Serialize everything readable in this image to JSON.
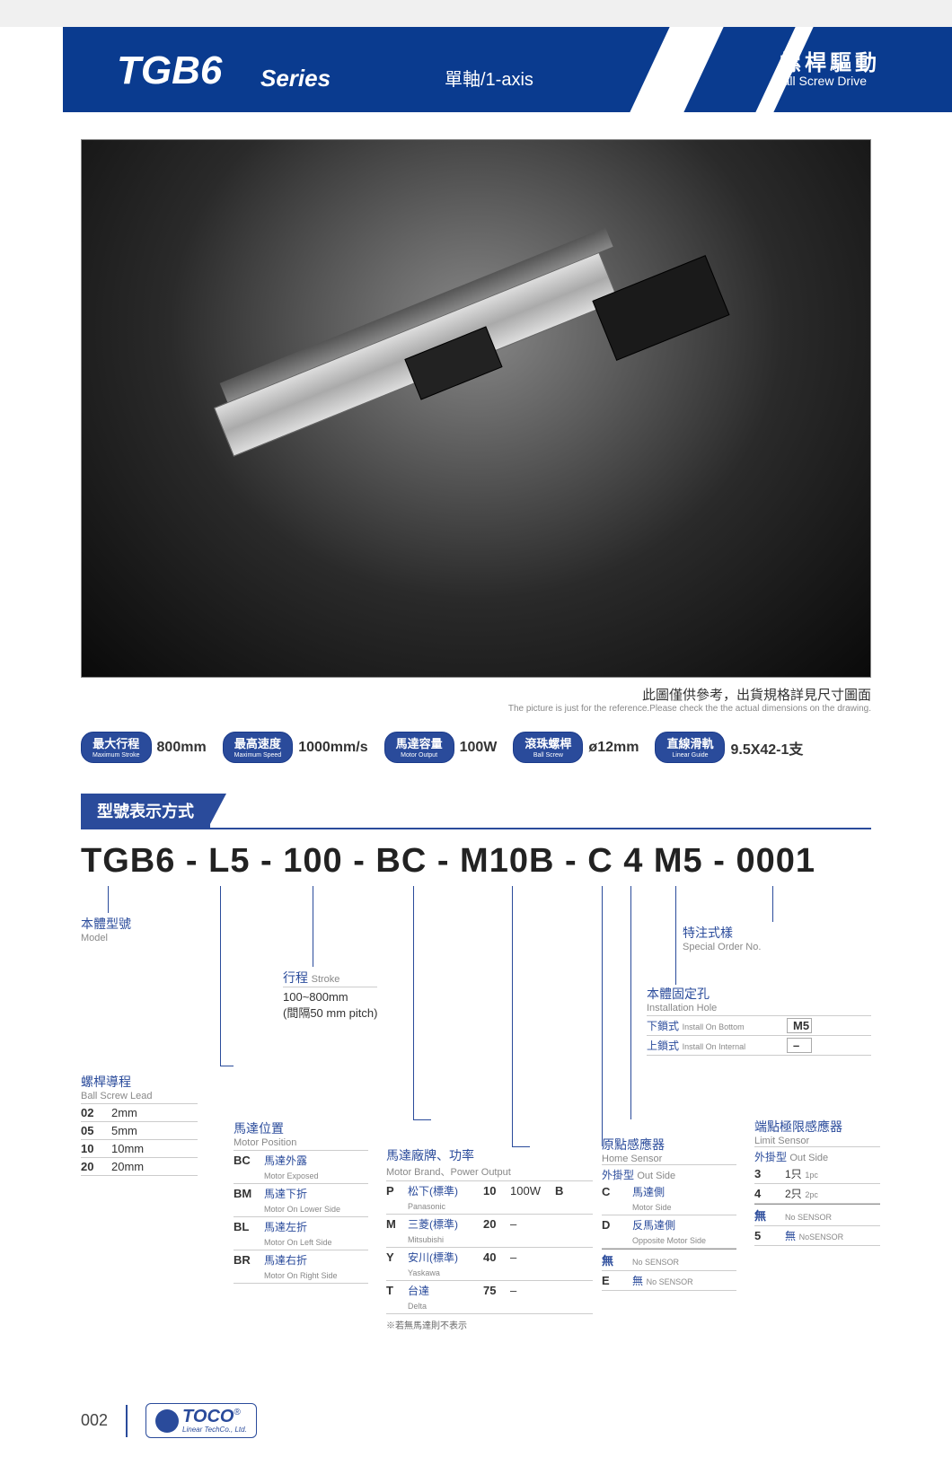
{
  "header": {
    "title_main": "TGB6",
    "title_series": "Series",
    "sub1": "單軸/1-axis",
    "sub2_cn": "螺桿驅動",
    "sub2_en": "Ball Screw Drive"
  },
  "image_caption": {
    "cn": "此圖僅供參考，出貨規格詳見尺寸圖面",
    "en": "The picture is just for the reference.Please check the the actual dimensions on the drawing."
  },
  "specs": [
    {
      "cn": "最大行程",
      "en": "Maximum Stroke",
      "value": "800mm"
    },
    {
      "cn": "最高速度",
      "en": "Maximum Speed",
      "value": "1000mm/s"
    },
    {
      "cn": "馬達容量",
      "en": "Motor Output",
      "value": "100W"
    },
    {
      "cn": "滾珠螺桿",
      "en": "Ball Screw",
      "value": "ø12mm"
    },
    {
      "cn": "直線滑軌",
      "en": "Linear Guide",
      "value": "9.5X42-1支"
    }
  ],
  "section_title": "型號表示方式",
  "model_line": "TGB6 - L5 - 100 - BC - M10B - C 4 M5 - 0001",
  "breakdown": {
    "model": {
      "cn": "本體型號",
      "en": "Model"
    },
    "lead": {
      "cn": "螺桿導程",
      "en": "Ball Screw Lead",
      "rows": [
        {
          "code": "02",
          "val": "2mm"
        },
        {
          "code": "05",
          "val": "5mm"
        },
        {
          "code": "10",
          "val": "10mm"
        },
        {
          "code": "20",
          "val": "20mm"
        }
      ]
    },
    "stroke": {
      "cn": "行程",
      "en": "Stroke",
      "line1": "100~800mm",
      "line2": "(間隔50 mm pitch)"
    },
    "motor_pos": {
      "cn": "馬達位置",
      "en": "Motor Position",
      "rows": [
        {
          "code": "BC",
          "cn": "馬達外露",
          "en": "Motor Exposed"
        },
        {
          "code": "BM",
          "cn": "馬達下折",
          "en": "Motor On Lower Side"
        },
        {
          "code": "BL",
          "cn": "馬達左折",
          "en": "Motor On Left Side"
        },
        {
          "code": "BR",
          "cn": "馬達右折",
          "en": "Motor On Right Side"
        }
      ]
    },
    "motor_brand": {
      "cn": "馬達廠牌、功率",
      "en": "Motor Brand、Power Output",
      "rows": [
        {
          "code": "P",
          "cn": "松下(標準)",
          "en": "Panasonic",
          "w": "10",
          "watt": "100W",
          "suffix": "B"
        },
        {
          "code": "M",
          "cn": "三菱(標準)",
          "en": "Mitsubishi",
          "w": "20",
          "watt": "–",
          "suffix": ""
        },
        {
          "code": "Y",
          "cn": "安川(標準)",
          "en": "Yaskawa",
          "w": "40",
          "watt": "–",
          "suffix": ""
        },
        {
          "code": "T",
          "cn": "台達",
          "en": "Delta",
          "w": "75",
          "watt": "–",
          "suffix": ""
        }
      ],
      "note": "※若無馬達則不表示"
    },
    "home_sensor": {
      "cn": "原點感應器",
      "en": "Home Sensor",
      "sub_cn": "外掛型",
      "sub_en": "Out Side",
      "rows": [
        {
          "code": "C",
          "cn": "馬達側",
          "en": "Motor Side"
        },
        {
          "code": "D",
          "cn": "反馬達側",
          "en": "Opposite Motor Side"
        }
      ],
      "none_cn": "無",
      "none_en": "No SENSOR",
      "e_row": {
        "code": "E",
        "cn": "無",
        "en": "No SENSOR"
      }
    },
    "limit_sensor": {
      "cn": "端點極限感應器",
      "en": "Limit Sensor",
      "sub_cn": "外掛型",
      "sub_en": "Out Side",
      "rows": [
        {
          "code": "3",
          "cn": "1只",
          "en": "1pc"
        },
        {
          "code": "4",
          "cn": "2只",
          "en": "2pc"
        }
      ],
      "none_cn": "無",
      "none_en": "No SENSOR",
      "five_row": {
        "code": "5",
        "cn": "無",
        "en": "NoSENSOR"
      }
    },
    "install_hole": {
      "cn": "本體固定孔",
      "en": "Installation Hole",
      "rows": [
        {
          "cn": "下鎖式",
          "en": "Install On Bottom",
          "val": "M5"
        },
        {
          "cn": "上鎖式",
          "en": "Install On Internal",
          "val": "–"
        }
      ]
    },
    "special": {
      "cn": "特注式樣",
      "en": "Special Order No."
    }
  },
  "footer": {
    "page": "002",
    "logo_main": "TOCO",
    "logo_sub": "Linear TechCo., Ltd."
  },
  "colors": {
    "brand_blue": "#2a4b9b",
    "header_blue": "#0a3b8f"
  }
}
